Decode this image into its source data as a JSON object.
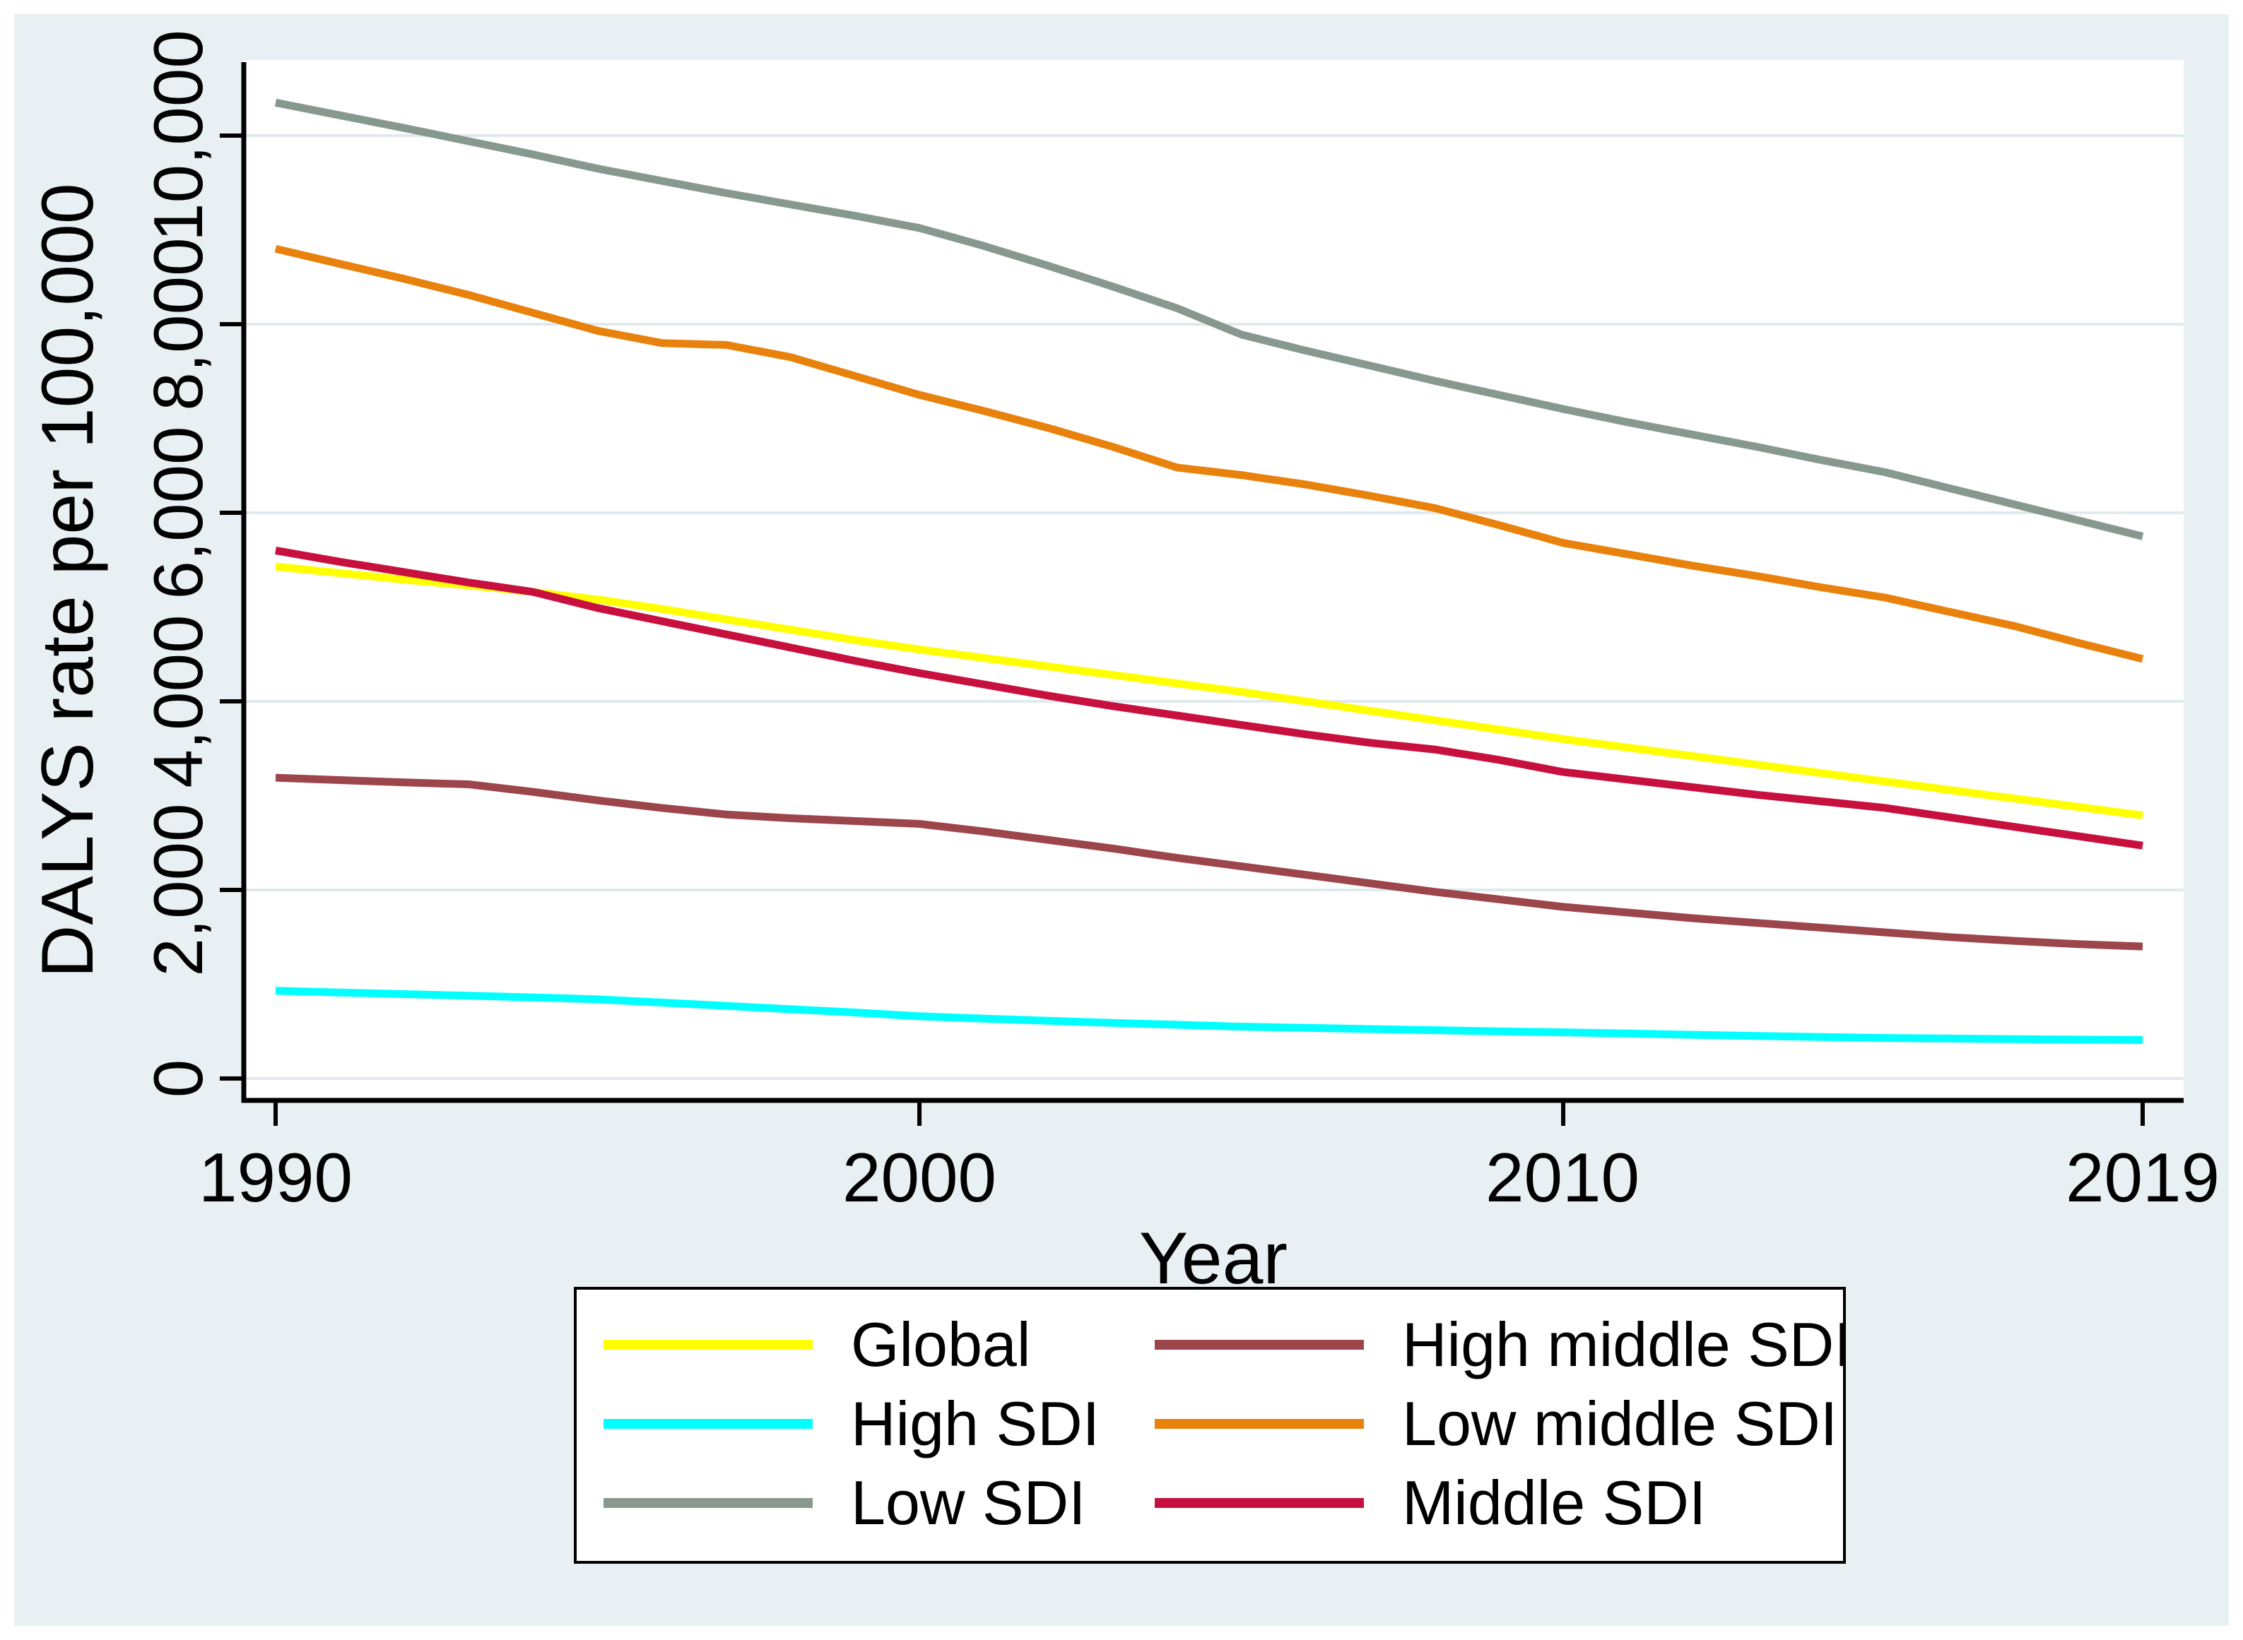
{
  "figure": {
    "background_color": "#e9f0f3",
    "plot_background_color": "#ffffff",
    "gridline_color": "#e0eaee",
    "axis_color": "#000000"
  },
  "y_axis": {
    "title": "DALYS rate per 100,000",
    "ticks": [
      {
        "label": "0",
        "value": 0
      },
      {
        "label": "2,000",
        "value": 2000
      },
      {
        "label": "4,000",
        "value": 4000
      },
      {
        "label": "6,000",
        "value": 6000
      },
      {
        "label": "8,000",
        "value": 8000
      },
      {
        "label": "10,000",
        "value": 10000
      }
    ]
  },
  "x_axis": {
    "title": "Year",
    "ticks": [
      {
        "label": "1990",
        "value": 1990
      },
      {
        "label": "2000",
        "value": 2000
      },
      {
        "label": "2010",
        "value": 2010
      },
      {
        "label": "2019",
        "value": 2019
      }
    ]
  },
  "legend": {
    "columns": [
      {
        "entries": [
          {
            "label": "Global",
            "color": "#ffff00"
          },
          {
            "label": "High SDI",
            "color": "#00ffff"
          },
          {
            "label": "Low SDI",
            "color": "#87998e"
          }
        ]
      },
      {
        "entries": [
          {
            "label": "High middle SDI",
            "color": "#9c464c"
          },
          {
            "label": "Low middle SDI",
            "color": "#e8820d"
          },
          {
            "label": "Middle SDI",
            "color": "#c8103e"
          }
        ]
      }
    ]
  },
  "chart_data": {
    "type": "line",
    "title": "",
    "xlabel": "Year",
    "ylabel": "DALYS rate per 100,000",
    "x_range": [
      1990,
      2019
    ],
    "ylim": [
      0,
      10700
    ],
    "grid": "horizontal",
    "legend_position": "bottom",
    "x": [
      1990,
      1991,
      1992,
      1993,
      1994,
      1995,
      1996,
      1997,
      1998,
      1999,
      2000,
      2001,
      2002,
      2003,
      2004,
      2005,
      2006,
      2007,
      2008,
      2009,
      2010,
      2011,
      2012,
      2013,
      2014,
      2015,
      2016,
      2017,
      2018,
      2019
    ],
    "series": [
      {
        "name": "Low SDI",
        "color": "#87998e",
        "values": [
          10350,
          10215,
          10080,
          9940,
          9800,
          9650,
          9520,
          9390,
          9270,
          9150,
          9020,
          8830,
          8620,
          8400,
          8170,
          7890,
          7720,
          7560,
          7400,
          7250,
          7100,
          6960,
          6830,
          6700,
          6560,
          6430,
          6260,
          6090,
          5920,
          5750
        ]
      },
      {
        "name": "Low middle SDI",
        "color": "#e8820d",
        "values": [
          8800,
          8640,
          8480,
          8310,
          8120,
          7930,
          7800,
          7780,
          7650,
          7450,
          7250,
          7080,
          6900,
          6700,
          6480,
          6400,
          6300,
          6180,
          6050,
          5870,
          5680,
          5560,
          5440,
          5330,
          5210,
          5100,
          4950,
          4800,
          4620,
          4450
        ]
      },
      {
        "name": "High middle SDI",
        "color": "#9c464c",
        "values": [
          3190,
          3165,
          3140,
          3120,
          3040,
          2950,
          2870,
          2800,
          2760,
          2730,
          2700,
          2620,
          2530,
          2440,
          2340,
          2250,
          2160,
          2070,
          1980,
          1900,
          1820,
          1760,
          1700,
          1650,
          1600,
          1550,
          1500,
          1460,
          1425,
          1400
        ]
      },
      {
        "name": "High SDI",
        "color": "#00ffff",
        "values": [
          930,
          912,
          895,
          878,
          860,
          840,
          805,
          770,
          735,
          700,
          660,
          635,
          612,
          590,
          570,
          550,
          537,
          524,
          512,
          500,
          490,
          477,
          464,
          452,
          440,
          430,
          424,
          418,
          413,
          408
        ]
      },
      {
        "name": "Global",
        "color": "#ffff00",
        "values": [
          5430,
          5360,
          5290,
          5230,
          5160,
          5080,
          4980,
          4870,
          4760,
          4650,
          4550,
          4460,
          4370,
          4280,
          4190,
          4100,
          4000,
          3900,
          3800,
          3700,
          3600,
          3510,
          3420,
          3330,
          3240,
          3150,
          3060,
          2970,
          2880,
          2790
        ]
      },
      {
        "name": "Middle SDI",
        "color": "#c8103e",
        "values": [
          5600,
          5480,
          5370,
          5260,
          5160,
          4990,
          4850,
          4710,
          4570,
          4430,
          4300,
          4180,
          4060,
          3950,
          3850,
          3750,
          3650,
          3560,
          3490,
          3380,
          3250,
          3170,
          3090,
          3010,
          2940,
          2870,
          2770,
          2670,
          2570,
          2470
        ]
      }
    ]
  }
}
